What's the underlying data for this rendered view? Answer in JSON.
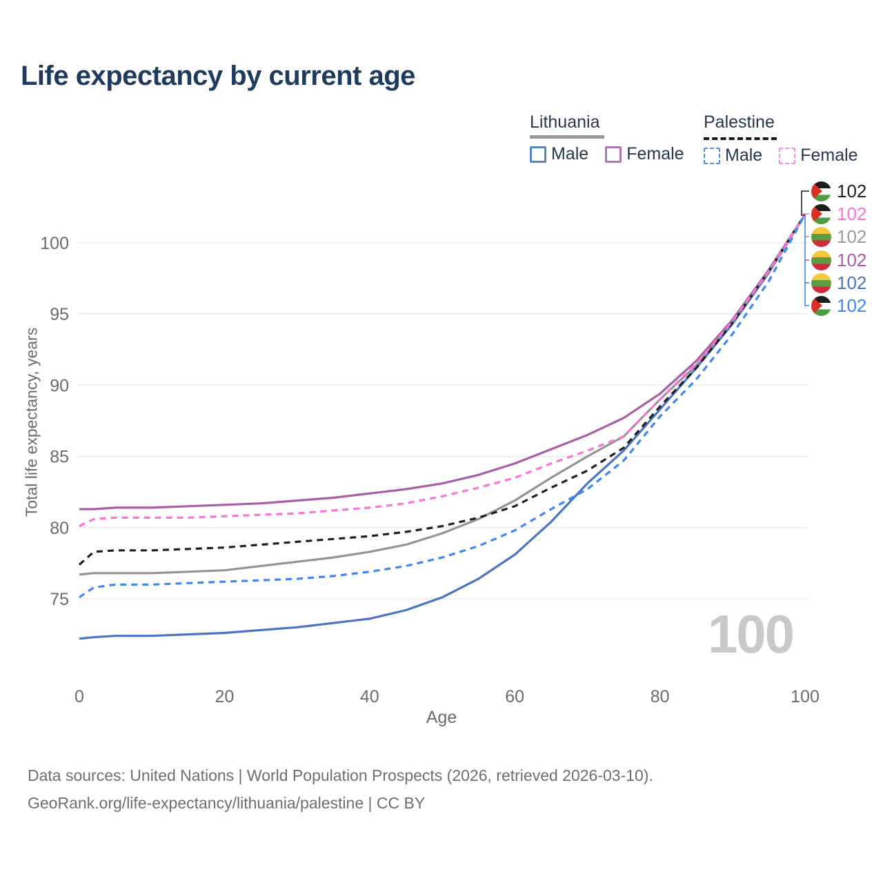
{
  "title": "Life expectancy by current age",
  "legend": {
    "groups": [
      {
        "label": "Lithuania",
        "style": "solid",
        "underline_color": "#9a9a9a",
        "items": [
          {
            "label": "Male",
            "color": "#5b84c6"
          },
          {
            "label": "Female",
            "color": "#b077ad"
          }
        ]
      },
      {
        "label": "Palestine",
        "style": "dashed",
        "underline_color": "#161616",
        "items": [
          {
            "label": "Male",
            "color": "#4f8df2"
          },
          {
            "label": "Female",
            "color": "#f98fdc"
          }
        ]
      }
    ]
  },
  "chart_data": {
    "type": "line",
    "title": "Life expectancy by current age",
    "xlabel": "Age",
    "ylabel": "Total life expectancy, years",
    "xlim": [
      0,
      100
    ],
    "ylim": [
      71,
      103
    ],
    "xticks": [
      0,
      20,
      40,
      60,
      80,
      100
    ],
    "yticks": [
      75,
      80,
      85,
      90,
      95,
      100
    ],
    "grid": "horizontal",
    "legend_position": "top-right",
    "x": [
      0,
      2,
      5,
      10,
      15,
      20,
      25,
      30,
      35,
      40,
      45,
      50,
      55,
      60,
      65,
      70,
      75,
      80,
      85,
      90,
      95,
      100
    ],
    "series": [
      {
        "name": "Lithuania Male",
        "country": "Lithuania",
        "sex": "Male",
        "style": "solid",
        "color": "#4a74c4",
        "end_value": 102,
        "values": [
          72.2,
          72.3,
          72.4,
          72.4,
          72.5,
          72.6,
          72.8,
          73.0,
          73.3,
          73.6,
          74.2,
          75.1,
          76.4,
          78.1,
          80.4,
          83.1,
          85.4,
          88.3,
          91.2,
          94.3,
          97.9,
          102
        ]
      },
      {
        "name": "Lithuania Female",
        "country": "Lithuania",
        "sex": "Female",
        "style": "solid",
        "color": "#a95da7",
        "end_value": 102,
        "values": [
          81.3,
          81.3,
          81.4,
          81.4,
          81.5,
          81.6,
          81.7,
          81.9,
          82.1,
          82.4,
          82.7,
          83.1,
          83.7,
          84.5,
          85.5,
          86.5,
          87.7,
          89.4,
          91.7,
          94.6,
          98.1,
          102
        ]
      },
      {
        "name": "Lithuania",
        "country": "Lithuania",
        "sex": "Both",
        "style": "solid",
        "color": "#949494",
        "end_value": 102,
        "values": [
          76.7,
          76.8,
          76.8,
          76.8,
          76.9,
          77.0,
          77.3,
          77.6,
          77.9,
          78.3,
          78.8,
          79.6,
          80.6,
          81.9,
          83.5,
          85.0,
          86.4,
          89.0,
          91.4,
          94.5,
          98.0,
          102
        ]
      },
      {
        "name": "Palestine",
        "country": "Palestine",
        "sex": "Both",
        "style": "dashed",
        "color": "#1f1f1f",
        "end_value": 102,
        "values": [
          77.4,
          78.3,
          78.4,
          78.4,
          78.5,
          78.6,
          78.8,
          79.0,
          79.2,
          79.4,
          79.7,
          80.1,
          80.7,
          81.5,
          82.8,
          84.0,
          85.6,
          88.5,
          91.2,
          94.4,
          98.0,
          102
        ]
      },
      {
        "name": "Palestine Female",
        "country": "Palestine",
        "sex": "Female",
        "style": "dashed",
        "color": "#fb74d4",
        "end_value": 102,
        "values": [
          80.1,
          80.6,
          80.7,
          80.7,
          80.7,
          80.8,
          80.9,
          81.0,
          81.2,
          81.4,
          81.7,
          82.2,
          82.8,
          83.5,
          84.5,
          85.4,
          86.4,
          89.0,
          91.5,
          94.5,
          98.0,
          102
        ]
      },
      {
        "name": "Palestine Male",
        "country": "Palestine",
        "sex": "Male",
        "style": "dashed",
        "color": "#3f86f5",
        "end_value": 102,
        "values": [
          75.1,
          75.8,
          76.0,
          76.0,
          76.1,
          76.2,
          76.3,
          76.4,
          76.6,
          76.9,
          77.3,
          77.9,
          78.7,
          79.8,
          81.3,
          82.7,
          84.7,
          87.8,
          90.4,
          93.6,
          97.3,
          102
        ]
      }
    ]
  },
  "end_labels": {
    "rows": [
      {
        "flag": "palestine",
        "series": "Palestine",
        "value": "102",
        "color": "#1f1f1f"
      },
      {
        "flag": "palestine",
        "series": "Palestine Female",
        "value": "102",
        "color": "#fb74d4"
      },
      {
        "flag": "lithuania",
        "series": "Lithuania",
        "value": "102",
        "color": "#9a9a9a"
      },
      {
        "flag": "lithuania",
        "series": "Lithuania Female",
        "value": "102",
        "color": "#a95da7"
      },
      {
        "flag": "lithuania",
        "series": "Lithuania Male",
        "value": "102",
        "color": "#4a74c4"
      },
      {
        "flag": "palestine",
        "series": "Palestine Male",
        "value": "102",
        "color": "#3f86f5"
      }
    ]
  },
  "watermark": "100",
  "footer": {
    "line1": "Data sources: United Nations | World Population Prospects (2026, retrieved 2026-03-10).",
    "line2": "GeoRank.org/life-expectancy/lithuania/palestine | CC BY"
  },
  "colors": {
    "title": "#1e3a5c",
    "axis_text": "#6b6b6b",
    "gridline": "#eaeaea",
    "watermark": "#c9c9c9",
    "footer_text": "#6e6e6e"
  }
}
